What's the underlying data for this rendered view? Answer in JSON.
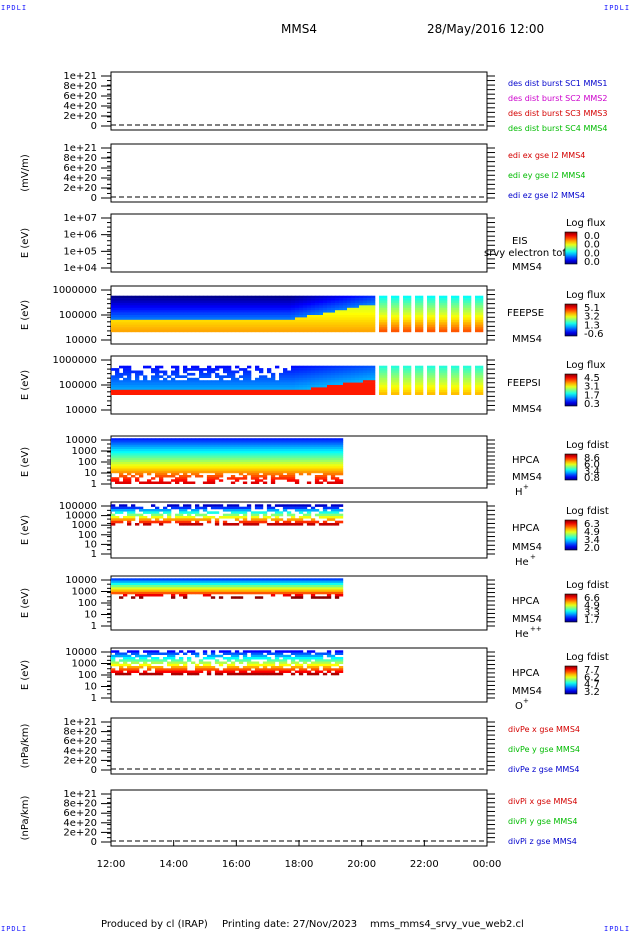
{
  "corner_label": "IPDLI",
  "header": {
    "spacecraft": "MMS4",
    "date": "28/May/2016 12:00"
  },
  "footer": {
    "produced_by": "Produced by cl (IRAP)",
    "printing_date": "Printing date: 27/Nov/2023",
    "filename": "mms_mms4_srvy_vue_web2.cl"
  },
  "colors": {
    "red": "#d40000",
    "magenta": "#cc00cc",
    "green": "#00bb00",
    "blue": "#0000cc",
    "corner": "#1a1aff"
  },
  "chart_data": {
    "type": "heatmap",
    "time_axis": {
      "ticks": [
        "12:00",
        "14:00",
        "16:00",
        "18:00",
        "20:00",
        "22:00",
        "00:00"
      ],
      "range_hours": [
        12,
        24
      ]
    },
    "panels": [
      {
        "id": "des-dist",
        "kind": "line",
        "ylabel": "",
        "yticks": [
          "1e+21",
          "8e+20",
          "6e+20",
          "4e+20",
          "2e+20",
          "0"
        ],
        "legend": [
          {
            "text": "des dist burst SC1 MMS1",
            "color": "#0000cc"
          },
          {
            "text": "des dist burst SC2 MMS2",
            "color": "#cc00cc"
          },
          {
            "text": "des dist burst SC3 MMS3",
            "color": "#d40000"
          },
          {
            "text": "des dist burst SC4 MMS4",
            "color": "#00bb00"
          }
        ]
      },
      {
        "id": "edi",
        "kind": "line",
        "ylabel": "(mV/m)",
        "yticks": [
          "1e+21",
          "8e+20",
          "6e+20",
          "4e+20",
          "2e+20",
          "0"
        ],
        "legend": [
          {
            "text": "edi ex gse l2 MMS4",
            "color": "#d40000"
          },
          {
            "text": "edi ey gse l2 MMS4",
            "color": "#00bb00"
          },
          {
            "text": "edi ez gse l2 MMS4",
            "color": "#0000cc"
          }
        ]
      },
      {
        "id": "eis",
        "kind": "spectrogram",
        "ylabel": "E (eV)",
        "yticks": [
          "1e+07",
          "1e+06",
          "1e+05",
          "1e+04"
        ],
        "instrument": "EIS",
        "instrument2": "MMS4",
        "overlay": "srvy electron tof",
        "cbar_title": "Log flux",
        "cbar_ticks": [
          "0.0",
          "0.0",
          "0.0",
          "0.0"
        ],
        "data_extent_hours": [
          12,
          12
        ]
      },
      {
        "id": "feepse",
        "kind": "spectrogram",
        "ylabel": "E (eV)",
        "yticks": [
          "1000000",
          "100000",
          "10000"
        ],
        "instrument": "FEEPSE",
        "instrument2": "MMS4",
        "cbar_title": "Log flux",
        "cbar_ticks": [
          "5.1",
          "3.2",
          "1.3",
          "-0.6"
        ],
        "data_extent_hours": [
          12,
          24
        ]
      },
      {
        "id": "feepsi",
        "kind": "spectrogram",
        "ylabel": "E (eV)",
        "yticks": [
          "1000000",
          "100000",
          "10000"
        ],
        "instrument": "FEEPSI",
        "instrument2": "MMS4",
        "cbar_title": "Log flux",
        "cbar_ticks": [
          "4.5",
          "3.1",
          "1.7",
          "0.3"
        ],
        "data_extent_hours": [
          12,
          24
        ]
      },
      {
        "id": "hpca-h",
        "kind": "spectrogram",
        "ylabel": "E (eV)",
        "yticks": [
          "10000",
          "1000",
          "100",
          "10",
          "1"
        ],
        "instrument": "HPCA",
        "instrument2": "MMS4",
        "species": "H",
        "charge": "+",
        "cbar_title": "Log fdist",
        "cbar_ticks": [
          "8.6",
          "6.0",
          "3.4",
          "0.8"
        ],
        "data_extent_hours": [
          12,
          19.4
        ]
      },
      {
        "id": "hpca-he",
        "kind": "spectrogram",
        "ylabel": "E (eV)",
        "yticks": [
          "100000",
          "10000",
          "1000",
          "100",
          "10",
          "1"
        ],
        "instrument": "HPCA",
        "instrument2": "MMS4",
        "species": "He",
        "charge": "+",
        "cbar_title": "Log fdist",
        "cbar_ticks": [
          "6.3",
          "4.9",
          "3.4",
          "2.0"
        ],
        "data_extent_hours": [
          12,
          19.4
        ]
      },
      {
        "id": "hpca-he2",
        "kind": "spectrogram",
        "ylabel": "E (eV)",
        "yticks": [
          "10000",
          "1000",
          "100",
          "10",
          "1"
        ],
        "instrument": "HPCA",
        "instrument2": "MMS4",
        "species": "He",
        "charge": "++",
        "cbar_title": "Log fdist",
        "cbar_ticks": [
          "6.6",
          "4.9",
          "3.3",
          "1.7"
        ],
        "data_extent_hours": [
          12,
          19.4
        ]
      },
      {
        "id": "hpca-o",
        "kind": "spectrogram",
        "ylabel": "E (eV)",
        "yticks": [
          "10000",
          "1000",
          "100",
          "10",
          "1"
        ],
        "instrument": "HPCA",
        "instrument2": "MMS4",
        "species": "O",
        "charge": "+",
        "cbar_title": "Log fdist",
        "cbar_ticks": [
          "7.7",
          "6.2",
          "4.7",
          "3.2"
        ],
        "data_extent_hours": [
          12,
          19.4
        ]
      },
      {
        "id": "divpe",
        "kind": "line",
        "ylabel": "(nPa/km)",
        "yticks": [
          "1e+21",
          "8e+20",
          "6e+20",
          "4e+20",
          "2e+20",
          "0"
        ],
        "legend": [
          {
            "text": "divPe x gse MMS4",
            "color": "#d40000"
          },
          {
            "text": "divPe y gse MMS4",
            "color": "#00bb00"
          },
          {
            "text": "divPe z gse MMS4",
            "color": "#0000cc"
          }
        ]
      },
      {
        "id": "divpi",
        "kind": "line",
        "ylabel": "(nPa/km)",
        "yticks": [
          "1e+21",
          "8e+20",
          "6e+20",
          "4e+20",
          "2e+20",
          "0"
        ],
        "legend": [
          {
            "text": "divPi x gse MMS4",
            "color": "#d40000"
          },
          {
            "text": "divPi y gse MMS4",
            "color": "#00bb00"
          },
          {
            "text": "divPi z gse MMS4",
            "color": "#0000cc"
          }
        ]
      }
    ]
  }
}
